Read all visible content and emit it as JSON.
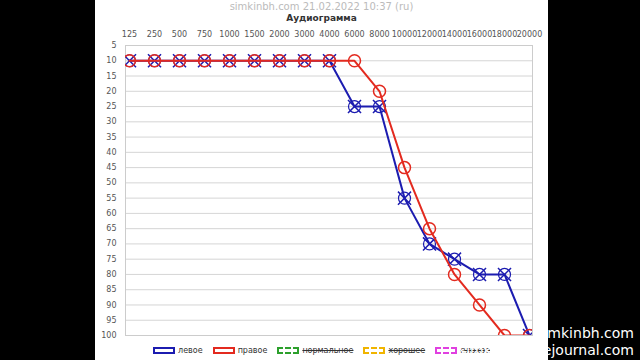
{
  "chart_data": {
    "type": "line",
    "title": "simkinbh.com   21.02.2022   10:37 (ru)",
    "subtitle": "Аудиограмма",
    "categories": [
      "125",
      "250",
      "500",
      "750",
      "1000",
      "1500",
      "2000",
      "3000",
      "4000",
      "6000",
      "8000",
      "10000",
      "12000",
      "14000",
      "16000",
      "18000",
      "20000"
    ],
    "series": [
      {
        "name": "левое",
        "color": "#1c1cb0",
        "marker": "x",
        "line_style": "solid",
        "values": [
          10,
          10,
          10,
          10,
          10,
          10,
          10,
          10,
          10,
          25,
          25,
          55,
          70,
          75,
          80,
          80,
          100
        ]
      },
      {
        "name": "правое",
        "color": "#e32a1f",
        "marker": "o",
        "line_style": "solid",
        "values": [
          10,
          10,
          10,
          10,
          10,
          10,
          10,
          10,
          10,
          10,
          20,
          45,
          65,
          80,
          90,
          100,
          100
        ]
      },
      {
        "name": "нормальное",
        "color": "#2ca02c",
        "line_style": "dashed",
        "values": [
          null,
          null,
          null,
          null,
          null,
          null,
          null,
          null,
          null,
          null,
          null,
          null,
          null,
          null,
          null,
          null,
          null
        ]
      },
      {
        "name": "хорошее",
        "color": "#f0b400",
        "line_style": "dashed",
        "values": [
          null,
          null,
          null,
          null,
          null,
          null,
          null,
          null,
          null,
          null,
          null,
          null,
          null,
          null,
          null,
          null,
          null
        ]
      },
      {
        "name": "плохое",
        "color": "#e040e0",
        "line_style": "dashed",
        "values": [
          null,
          null,
          null,
          null,
          null,
          null,
          null,
          null,
          null,
          null,
          null,
          null,
          null,
          null,
          null,
          null,
          null
        ]
      }
    ],
    "ylim": [
      5,
      100
    ],
    "yticks": [
      5,
      10,
      15,
      20,
      25,
      30,
      35,
      40,
      45,
      50,
      55,
      60,
      65,
      70,
      75,
      80,
      85,
      90,
      95,
      100
    ],
    "grid": true,
    "legend": "bottom",
    "annotations": [
      "simkinbh.com",
      "simkinbh.livejournal.com"
    ]
  }
}
